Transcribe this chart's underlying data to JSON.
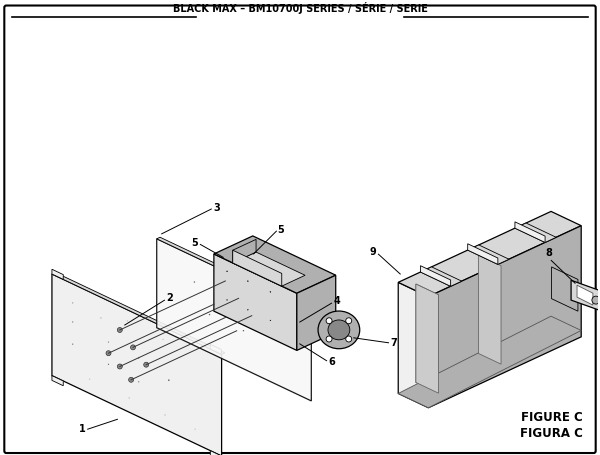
{
  "title": "BLACK MAX – BM10700J SERIES / SÉRIE / SERIE",
  "figure_label": "FIGURE C",
  "figure_label2": "FIGURA C",
  "bg_color": "#ffffff",
  "border_color": "#000000",
  "text_color": "#000000",
  "lw_thin": 0.6,
  "lw_med": 0.9,
  "lw_thick": 1.4,
  "gray_light": "#f0f0f0",
  "gray_mid": "#d8d8d8",
  "gray_dark": "#b0b0b0",
  "gray_darker": "#888888"
}
